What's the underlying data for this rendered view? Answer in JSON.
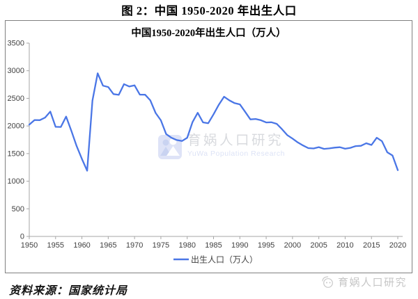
{
  "page": {
    "figure_title": "图 2：中国 1950-2020 年出生人口",
    "source_note": "资料来源：国家统计局",
    "center_watermark": {
      "brand_cn": "育娲人口研究",
      "brand_en": "YuWa Population Research"
    },
    "corner_watermark": {
      "brand_cn": "育娲人口研究"
    }
  },
  "chart_data": {
    "type": "line",
    "title": "中国1950-2020年出生人口（万人）",
    "xlabel": "",
    "ylabel": "",
    "xlim": [
      1950,
      2020
    ],
    "ylim": [
      0,
      3500
    ],
    "xticks": [
      1950,
      1955,
      1960,
      1965,
      1970,
      1975,
      1980,
      1985,
      1990,
      1995,
      2000,
      2005,
      2010,
      2015,
      2020
    ],
    "yticks": [
      0,
      500,
      1000,
      1500,
      2000,
      2500,
      3000,
      3500
    ],
    "grid": false,
    "legend_position": "bottom",
    "line_color": "#4a76e6",
    "axis_color": "#a6a6a6",
    "tick_label_color": "#3f3f3f",
    "x": [
      1950,
      1951,
      1952,
      1953,
      1954,
      1955,
      1956,
      1957,
      1958,
      1959,
      1960,
      1961,
      1962,
      1963,
      1964,
      1965,
      1966,
      1967,
      1968,
      1969,
      1970,
      1971,
      1972,
      1973,
      1974,
      1975,
      1976,
      1977,
      1978,
      1979,
      1980,
      1981,
      1982,
      1983,
      1984,
      1985,
      1986,
      1987,
      1988,
      1989,
      1990,
      1991,
      1992,
      1993,
      1994,
      1995,
      1996,
      1997,
      1998,
      1999,
      2000,
      2001,
      2002,
      2003,
      2004,
      2005,
      2006,
      2007,
      2008,
      2009,
      2010,
      2011,
      2012,
      2013,
      2014,
      2015,
      2016,
      2017,
      2018,
      2019,
      2020
    ],
    "series": [
      {
        "name": "出生人口（万人）",
        "values": [
          2023,
          2107,
          2105,
          2151,
          2260,
          1984,
          1982,
          2169,
          1909,
          1635,
          1402,
          1190,
          2460,
          2954,
          2729,
          2704,
          2577,
          2563,
          2757,
          2715,
          2736,
          2567,
          2566,
          2463,
          2235,
          2102,
          1853,
          1786,
          1745,
          1727,
          1787,
          2069,
          2238,
          2065,
          2050,
          2211,
          2384,
          2529,
          2464,
          2414,
          2391,
          2258,
          2119,
          2126,
          2104,
          2063,
          2067,
          2038,
          1942,
          1834,
          1771,
          1702,
          1647,
          1599,
          1593,
          1617,
          1585,
          1594,
          1608,
          1615,
          1588,
          1604,
          1635,
          1640,
          1687,
          1655,
          1786,
          1723,
          1523,
          1465,
          1200
        ]
      }
    ]
  }
}
